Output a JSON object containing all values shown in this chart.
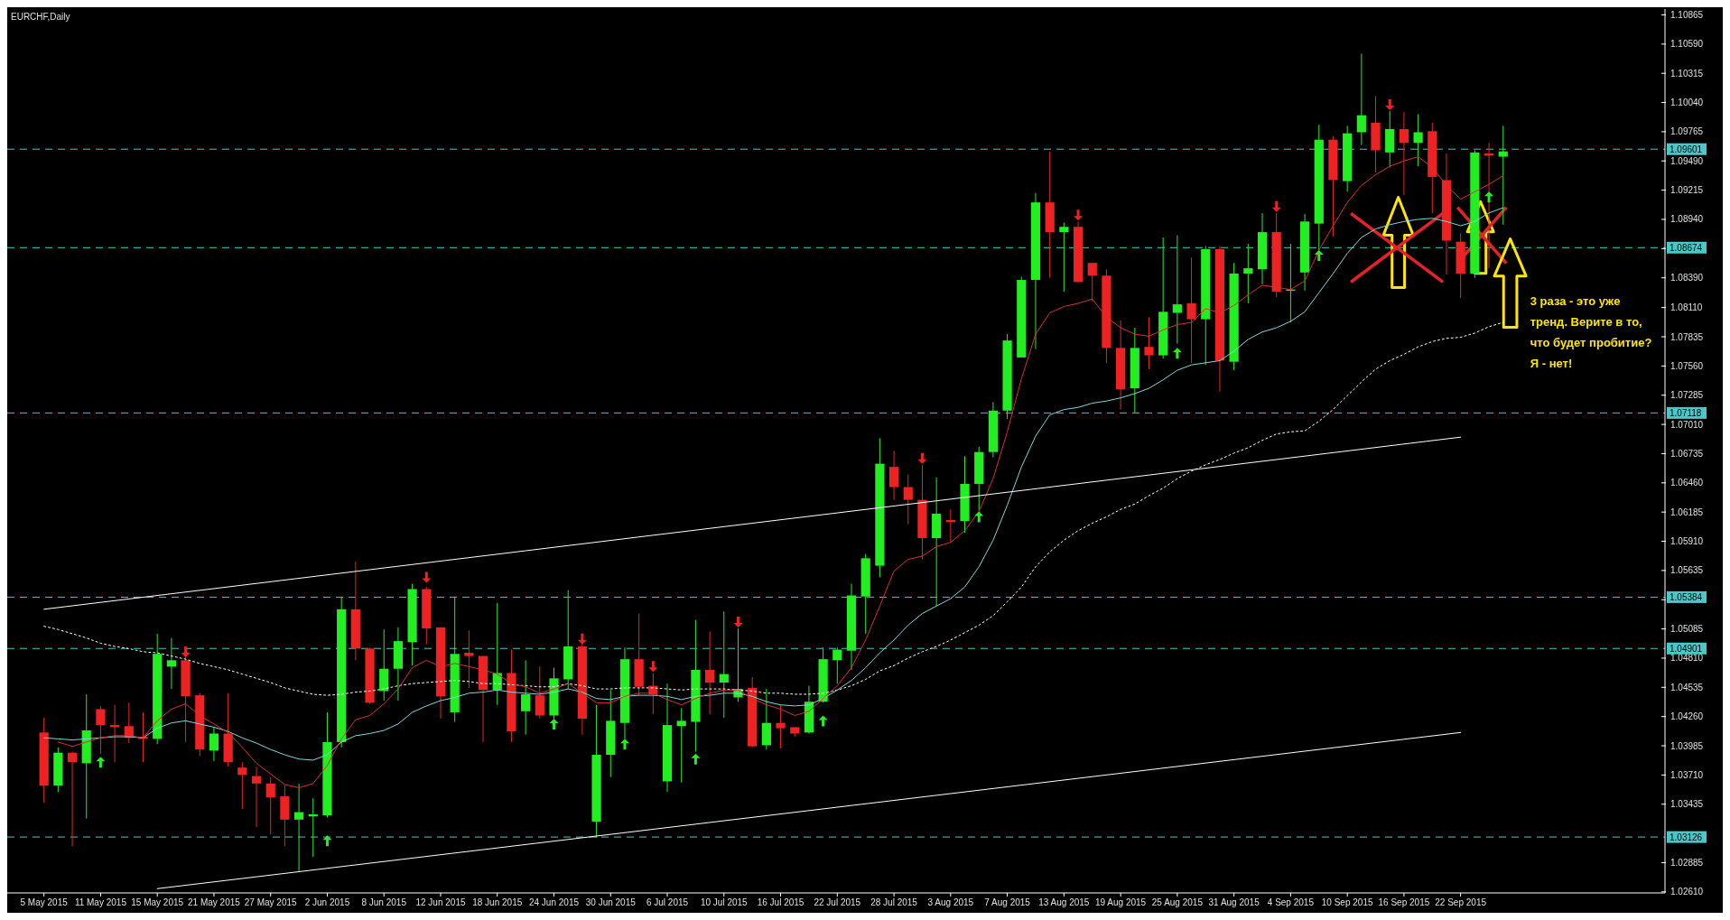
{
  "chart_data": {
    "type": "candlestick",
    "title": "EURCHF,Daily",
    "categories": [
      "5 May 2015",
      null,
      null,
      null,
      "11 May 2015",
      null,
      null,
      null,
      "15 May 2015",
      null,
      null,
      null,
      "21 May 2015",
      null,
      null,
      null,
      "27 May 2015",
      null,
      null,
      null,
      "2 Jun 2015",
      null,
      null,
      null,
      "8 Jun 2015",
      null,
      null,
      null,
      "12 Jun 2015",
      null,
      null,
      null,
      "18 Jun 2015",
      null,
      null,
      null,
      "24 Jun 2015",
      null,
      null,
      null,
      "30 Jun 2015",
      null,
      null,
      null,
      "6 Jul 2015",
      null,
      null,
      null,
      "10 Jul 2015",
      null,
      null,
      null,
      "16 Jul 2015",
      null,
      null,
      null,
      "22 Jul 2015",
      null,
      null,
      null,
      "28 Jul 2015",
      null,
      null,
      null,
      "3 Aug 2015",
      null,
      null,
      null,
      "7 Aug 2015",
      null,
      null,
      null,
      "13 Aug 2015",
      null,
      null,
      null,
      "19 Aug 2015",
      null,
      null,
      null,
      "25 Aug 2015",
      null,
      null,
      null,
      "31 Aug 2015",
      null,
      null,
      null,
      "4 Sep 2015",
      null,
      null,
      null,
      "10 Sep 2015",
      null,
      null,
      null,
      "16 Sep 2015",
      null,
      null,
      null,
      "22 Sep 2015",
      null,
      null,
      null
    ],
    "ohlc": [
      [
        1.0411,
        1.0425,
        1.0345,
        1.0361
      ],
      [
        1.0361,
        1.0397,
        1.0355,
        1.0392
      ],
      [
        1.0392,
        1.0393,
        1.0304,
        1.0383
      ],
      [
        1.0382,
        1.0447,
        1.033,
        1.0413
      ],
      [
        1.0433,
        1.0436,
        1.0391,
        1.0418
      ],
      [
        1.0418,
        1.0437,
        1.0383,
        1.0416
      ],
      [
        1.0417,
        1.0439,
        1.0401,
        1.0406
      ],
      [
        1.0407,
        1.043,
        1.0383,
        1.0405
      ],
      [
        1.0405,
        1.0504,
        1.04,
        1.0485
      ],
      [
        1.0473,
        1.05,
        1.0452,
        1.0479
      ],
      [
        1.0479,
        1.0483,
        1.0402,
        1.0445
      ],
      [
        1.0446,
        1.0448,
        1.0389,
        1.0395
      ],
      [
        1.0394,
        1.0416,
        1.0384,
        1.041
      ],
      [
        1.041,
        1.0448,
        1.0379,
        1.0383
      ],
      [
        1.0378,
        1.0383,
        1.0339,
        1.0371
      ],
      [
        1.037,
        1.0379,
        1.0322,
        1.0363
      ],
      [
        1.0363,
        1.0369,
        1.0315,
        1.035
      ],
      [
        1.0351,
        1.0361,
        1.0304,
        1.0329
      ],
      [
        1.0329,
        1.0363,
        1.028,
        1.0336
      ],
      [
        1.0332,
        1.0349,
        1.0294,
        1.0334
      ],
      [
        1.0333,
        1.043,
        1.0331,
        1.0402
      ],
      [
        1.0402,
        1.0539,
        1.0397,
        1.0527
      ],
      [
        1.0527,
        1.0572,
        1.0479,
        1.049
      ],
      [
        1.049,
        1.0491,
        1.0438,
        1.0439
      ],
      [
        1.045,
        1.0508,
        1.0441,
        1.0471
      ],
      [
        1.0471,
        1.051,
        1.0441,
        1.0497
      ],
      [
        1.0496,
        1.0551,
        1.0474,
        1.0546
      ],
      [
        1.0546,
        1.0548,
        1.0494,
        1.0509
      ],
      [
        1.051,
        1.051,
        1.0424,
        1.0445
      ],
      [
        1.043,
        1.0539,
        1.0421,
        1.0485
      ],
      [
        1.0486,
        1.0507,
        1.0453,
        1.0483
      ],
      [
        1.0483,
        1.0483,
        1.0402,
        1.0451
      ],
      [
        1.0451,
        1.0533,
        1.0437,
        1.0467
      ],
      [
        1.0467,
        1.0489,
        1.0402,
        1.0412
      ],
      [
        1.0431,
        1.0479,
        1.0409,
        1.0447
      ],
      [
        1.0446,
        1.0473,
        1.0424,
        1.0427
      ],
      [
        1.0427,
        1.0472,
        1.0424,
        1.0462
      ],
      [
        1.0461,
        1.0545,
        1.0452,
        1.0492
      ],
      [
        1.0492,
        1.0495,
        1.0409,
        1.0424
      ],
      [
        1.0327,
        1.0437,
        1.0312,
        1.039
      ],
      [
        1.039,
        1.0451,
        1.0369,
        1.0422
      ],
      [
        1.042,
        1.0491,
        1.0405,
        1.048
      ],
      [
        1.048,
        1.0523,
        1.0446,
        1.0454
      ],
      [
        1.0455,
        1.0467,
        1.0428,
        1.0447
      ],
      [
        1.0365,
        1.0457,
        1.0355,
        1.0418
      ],
      [
        1.0417,
        1.0434,
        1.0364,
        1.0422
      ],
      [
        1.0421,
        1.0517,
        1.0393,
        1.047
      ],
      [
        1.047,
        1.0506,
        1.0428,
        1.0458
      ],
      [
        1.0458,
        1.0525,
        1.0425,
        1.0466
      ],
      [
        1.0444,
        1.0509,
        1.044,
        1.0452
      ],
      [
        1.0453,
        1.0463,
        1.0397,
        1.0398
      ],
      [
        1.0399,
        1.0452,
        1.0395,
        1.042
      ],
      [
        1.042,
        1.0437,
        1.0396,
        1.0415
      ],
      [
        1.0416,
        1.0416,
        1.0407,
        1.041
      ],
      [
        1.0411,
        1.0455,
        1.041,
        1.044
      ],
      [
        1.044,
        1.0491,
        1.0439,
        1.048
      ],
      [
        1.0479,
        1.0491,
        1.0457,
        1.0489
      ],
      [
        1.0488,
        1.0551,
        1.047,
        1.054
      ],
      [
        1.0539,
        1.0579,
        1.0504,
        1.0575
      ],
      [
        1.0568,
        1.0688,
        1.0557,
        1.0664
      ],
      [
        1.0661,
        1.0676,
        1.063,
        1.0642
      ],
      [
        1.0642,
        1.0654,
        1.0607,
        1.063
      ],
      [
        1.063,
        1.0663,
        1.0574,
        1.0594
      ],
      [
        1.0594,
        1.0651,
        1.053,
        1.0617
      ],
      [
        1.0611,
        1.0621,
        1.059,
        1.0609
      ],
      [
        1.061,
        1.0671,
        1.0599,
        1.0645
      ],
      [
        1.0645,
        1.068,
        1.062,
        1.0675
      ],
      [
        1.0675,
        1.0722,
        1.067,
        1.0714
      ],
      [
        1.0714,
        1.0786,
        1.0706,
        1.078
      ],
      [
        1.0764,
        1.084,
        1.0764,
        1.0837
      ],
      [
        1.0837,
        1.0919,
        1.0772,
        1.091
      ],
      [
        1.091,
        1.0958,
        1.0839,
        1.0882
      ],
      [
        1.0882,
        1.0891,
        1.0826,
        1.0887
      ],
      [
        1.0887,
        1.0892,
        1.0835,
        1.0835
      ],
      [
        1.0853,
        1.0853,
        1.0817,
        1.0841
      ],
      [
        1.0841,
        1.0847,
        1.0759,
        1.0773
      ],
      [
        1.0773,
        1.0799,
        1.0715,
        1.0734
      ],
      [
        1.0735,
        1.0792,
        1.0712,
        1.0773
      ],
      [
        1.0774,
        1.0802,
        1.0753,
        1.0766
      ],
      [
        1.0766,
        1.0877,
        1.0763,
        1.0807
      ],
      [
        1.0806,
        1.0879,
        1.0777,
        1.0814
      ],
      [
        1.0815,
        1.0858,
        1.0759,
        1.08
      ],
      [
        1.08,
        1.0869,
        1.0757,
        1.0866
      ],
      [
        1.0866,
        1.0869,
        1.0732,
        1.0761
      ],
      [
        1.076,
        1.0853,
        1.0752,
        1.0843
      ],
      [
        1.0843,
        1.0871,
        1.0815,
        1.0848
      ],
      [
        1.0847,
        1.09,
        1.0833,
        1.0882
      ],
      [
        1.0882,
        1.09,
        1.0821,
        1.0826
      ],
      [
        1.0827,
        1.0871,
        1.0797,
        1.0828
      ],
      [
        1.0844,
        1.0899,
        1.0827,
        1.0892
      ],
      [
        1.089,
        1.0983,
        1.0865,
        1.0969
      ],
      [
        1.0969,
        1.0972,
        1.0878,
        1.0931
      ],
      [
        1.093,
        1.0982,
        1.092,
        1.0975
      ],
      [
        1.0976,
        1.105,
        1.0964,
        1.0992
      ],
      [
        1.0985,
        1.101,
        1.0938,
        1.0959
      ],
      [
        1.0957,
        1.0996,
        1.0943,
        1.0979
      ],
      [
        1.0979,
        1.0995,
        1.0917,
        1.0966
      ],
      [
        1.0966,
        1.0993,
        1.0944,
        1.0976
      ],
      [
        1.0977,
        1.0985,
        1.09,
        1.0934
      ],
      [
        1.0931,
        1.0956,
        1.0842,
        1.0874
      ],
      [
        1.0873,
        1.0881,
        1.082,
        1.0843
      ],
      [
        1.0843,
        1.0959,
        1.0839,
        1.0957
      ],
      [
        1.0956,
        1.0966,
        1.0848,
        1.0954
      ],
      [
        1.0953,
        1.0982,
        1.0889,
        1.0958
      ]
    ],
    "colors": [
      "#ee2222",
      "#22ee22",
      "#ee2222",
      "#22ee22",
      "#ee2222",
      "#ee2222",
      "#ee2222",
      "#ee2222",
      "#22ee22",
      "#22ee22",
      "#ee2222",
      "#ee2222",
      "#22ee22",
      "#ee2222",
      "#ee2222",
      "#ee2222",
      "#ee2222",
      "#ee2222",
      "#22ee22",
      "#22ee22",
      "#22ee22",
      "#22ee22",
      "#ee2222",
      "#ee2222",
      "#22ee22",
      "#22ee22",
      "#22ee22",
      "#ee2222",
      "#ee2222",
      "#22ee22",
      "#ee2222",
      "#ee2222",
      "#22ee22",
      "#ee2222",
      "#22ee22",
      "#ee2222",
      "#22ee22",
      "#22ee22",
      "#ee2222",
      "#22ee22",
      "#22ee22",
      "#22ee22",
      "#ee2222",
      "#ee2222",
      "#22ee22",
      "#22ee22",
      "#22ee22",
      "#ee2222",
      "#22ee22",
      "#22ee22",
      "#ee2222",
      "#22ee22",
      "#ee2222",
      "#ee2222",
      "#22ee22",
      "#22ee22",
      "#22ee22",
      "#22ee22",
      "#22ee22",
      "#22ee22",
      "#ee2222",
      "#ee2222",
      "#ee2222",
      "#22ee22",
      "#ee2222",
      "#22ee22",
      "#22ee22",
      "#22ee22",
      "#22ee22",
      "#22ee22",
      "#22ee22",
      "#ee2222",
      "#22ee22",
      "#ee2222",
      "#ee2222",
      "#ee2222",
      "#ee2222",
      "#22ee22",
      "#ee2222",
      "#22ee22",
      "#22ee22",
      "#ee2222",
      "#22ee22",
      "#ee2222",
      "#22ee22",
      "#22ee22",
      "#22ee22",
      "#ee2222",
      "#22ee22",
      "#22ee22",
      "#22ee22",
      "#ee2222",
      "#22ee22",
      "#22ee22",
      "#ee2222",
      "#22ee22",
      "#ee2222",
      "#22ee22",
      "#ee2222",
      "#ee2222",
      "#ee2222",
      "#22ee22",
      "#ee2222",
      "#22ee22"
    ],
    "series": [
      {
        "type": "line",
        "color": "#ffffff",
        "line_style": "dotted",
        "values": [
          1.0511,
          1.0508,
          1.0504,
          1.05,
          1.0495,
          1.0492,
          1.049,
          1.0487,
          1.0486,
          1.0483,
          1.048,
          1.0476,
          1.0473,
          1.047,
          1.0466,
          1.0462,
          1.0458,
          1.0453,
          1.045,
          1.0447,
          1.0446,
          1.0447,
          1.0449,
          1.045,
          1.0452,
          1.0455,
          1.0457,
          1.0458,
          1.0459,
          1.046,
          1.0459,
          1.0457,
          1.0457,
          1.0456,
          1.0455,
          1.0454,
          1.0454,
          1.0457,
          1.0455,
          1.0452,
          1.0452,
          1.0453,
          1.0453,
          1.0453,
          1.0452,
          1.0451,
          1.0452,
          1.0452,
          1.0452,
          1.0451,
          1.045,
          1.0448,
          1.0448,
          1.0447,
          1.0447,
          1.0448,
          1.0451,
          1.0455,
          1.0461,
          1.0469,
          1.0474,
          1.0481,
          1.0487,
          1.0492,
          1.0498,
          1.0505,
          1.0512,
          1.0521,
          1.0534,
          1.0548,
          1.0567,
          1.0581,
          1.0592,
          1.0601,
          1.0608,
          1.0614,
          1.0621,
          1.0626,
          1.0634,
          1.0641,
          1.065,
          1.0657,
          1.0663,
          1.0668,
          1.0674,
          1.0679,
          1.0686,
          1.0692,
          1.0694,
          1.0695,
          1.0704,
          1.0715,
          1.0728,
          1.0741,
          1.0753,
          1.0761,
          1.0767,
          1.0774,
          1.0779,
          1.0782,
          1.0783,
          1.0787,
          1.0793,
          1.0797
        ]
      },
      {
        "type": "line",
        "color": "#7fd8d8",
        "line_style": "solid",
        "values": [
          1.0406,
          1.0405,
          1.0404,
          1.0405,
          1.0406,
          1.0407,
          1.0407,
          1.0406,
          1.0415,
          1.042,
          1.0422,
          1.0419,
          1.0416,
          1.0412,
          1.0406,
          1.0401,
          1.0395,
          1.039,
          1.0386,
          1.0385,
          1.039,
          1.0402,
          1.0408,
          1.041,
          1.0413,
          1.0419,
          1.043,
          1.0436,
          1.0441,
          1.0444,
          1.0448,
          1.0449,
          1.0451,
          1.0449,
          1.0448,
          1.0447,
          1.0449,
          1.0452,
          1.0449,
          1.0443,
          1.0442,
          1.0445,
          1.0446,
          1.0446,
          1.0445,
          1.0442,
          1.0445,
          1.0446,
          1.0448,
          1.0448,
          1.0445,
          1.044,
          1.0437,
          1.0436,
          1.0437,
          1.0443,
          1.0451,
          1.046,
          1.0472,
          1.0486,
          1.0498,
          1.0512,
          1.0523,
          1.053,
          1.0537,
          1.0548,
          1.0567,
          1.0592,
          1.0625,
          1.0661,
          1.069,
          1.071,
          1.0715,
          1.0717,
          1.0721,
          1.0723,
          1.0726,
          1.073,
          1.0735,
          1.0743,
          1.0752,
          1.0757,
          1.0759,
          1.0761,
          1.077,
          1.0781,
          1.0788,
          1.0792,
          1.0798,
          1.0807,
          1.0825,
          1.0843,
          1.0862,
          1.0877,
          1.0885,
          1.0889,
          1.0892,
          1.0894,
          1.0895,
          1.0892,
          1.0888,
          1.0892,
          1.09,
          1.0905
        ]
      },
      {
        "type": "line",
        "color": "#d83030",
        "line_style": "solid",
        "values": [
          null,
          1.0402,
          1.0398,
          1.0402,
          1.0406,
          1.0408,
          1.0408,
          1.0406,
          1.0422,
          1.0433,
          1.0438,
          1.0427,
          1.0419,
          1.0411,
          1.0397,
          1.0382,
          1.0372,
          1.0362,
          1.0359,
          1.0363,
          1.038,
          1.0405,
          1.0423,
          1.0427,
          1.0438,
          1.0452,
          1.0472,
          1.0479,
          1.0473,
          1.0476,
          1.0473,
          1.047,
          1.0466,
          1.0457,
          1.0454,
          1.0448,
          1.0452,
          1.0457,
          1.0448,
          1.0439,
          1.0439,
          1.0445,
          1.0448,
          1.0448,
          1.0442,
          1.0437,
          1.0443,
          1.0448,
          1.0451,
          1.0451,
          1.0443,
          1.0437,
          1.0433,
          1.0427,
          1.0431,
          1.0443,
          1.0455,
          1.0472,
          1.0498,
          1.053,
          1.0563,
          1.0574,
          1.0577,
          1.0586,
          1.059,
          1.0601,
          1.0619,
          1.065,
          1.0694,
          1.0744,
          1.0786,
          1.0806,
          1.0812,
          1.0815,
          1.0819,
          1.0802,
          1.0792,
          1.0786,
          1.0784,
          1.079,
          1.0795,
          1.0797,
          1.081,
          1.0806,
          1.0813,
          1.0823,
          1.0832,
          1.083,
          1.0828,
          1.0836,
          1.0865,
          1.0888,
          1.091,
          1.0926,
          1.0936,
          1.0944,
          1.0949,
          1.0953,
          1.0943,
          1.0926,
          1.0913,
          1.092,
          1.0927,
          1.0935
        ]
      },
      {
        "type": "line",
        "color": "#ffffff",
        "line_style": "solid",
        "x": [
          "5 May 2015",
          "22 Sep 2015"
        ],
        "values": [
          1.0527,
          1.0689
        ]
      },
      {
        "type": "line",
        "color": "#ffffff",
        "line_style": "solid",
        "x": [
          "15 May 2015",
          "22 Sep 2015"
        ],
        "values": [
          1.0264,
          1.0411
        ]
      },
      {
        "type": "scatter",
        "color": "#ee2222",
        "marker": "triangle",
        "values": [
          null,
          null,
          null,
          null,
          null,
          null,
          null,
          null,
          null,
          null,
          1.0487,
          null,
          null,
          null,
          null,
          null,
          null,
          null,
          null,
          null,
          null,
          null,
          null,
          null,
          null,
          null,
          null,
          1.0557,
          null,
          null,
          null,
          null,
          null,
          null,
          null,
          null,
          null,
          null,
          1.0499,
          null,
          null,
          null,
          null,
          1.0473,
          null,
          null,
          null,
          null,
          null,
          1.0515,
          null,
          null,
          null,
          null,
          null,
          null,
          null,
          null,
          null,
          null,
          null,
          null,
          1.0669,
          null,
          null,
          null,
          null,
          null,
          null,
          null,
          null,
          null,
          null,
          1.0898,
          null,
          null,
          null,
          null,
          null,
          null,
          null,
          null,
          null,
          null,
          null,
          null,
          null,
          1.0906,
          null,
          null,
          null,
          null,
          null,
          null,
          null,
          1.1002,
          null,
          null,
          null,
          null,
          null,
          null,
          null,
          null
        ]
      },
      {
        "type": "scatter",
        "color": "#22ee22",
        "marker": "triangle",
        "values": [
          null,
          null,
          null,
          null,
          1.0383,
          null,
          null,
          null,
          null,
          null,
          null,
          null,
          null,
          null,
          null,
          null,
          null,
          null,
          null,
          null,
          1.0309,
          null,
          null,
          null,
          null,
          null,
          null,
          null,
          null,
          null,
          null,
          null,
          null,
          null,
          null,
          null,
          1.0419,
          null,
          null,
          null,
          null,
          1.04,
          null,
          null,
          null,
          null,
          1.0386,
          null,
          null,
          null,
          null,
          null,
          null,
          null,
          null,
          1.0422,
          null,
          null,
          null,
          null,
          null,
          null,
          null,
          null,
          null,
          null,
          1.0614,
          null,
          null,
          null,
          null,
          null,
          null,
          null,
          null,
          null,
          null,
          null,
          null,
          null,
          1.0768,
          null,
          null,
          null,
          null,
          null,
          null,
          null,
          null,
          null,
          1.086,
          null,
          null,
          null,
          null,
          null,
          null,
          null,
          null,
          null,
          null,
          null,
          1.0915,
          null
        ]
      }
    ],
    "ylim": [
      1.026,
      1.1092
    ],
    "yticks": [
      {
        "value": 1.0261,
        "label": "1.02610"
      },
      1.02885,
      1.03435,
      {
        "value": 1.0371,
        "label": "1.03710"
      },
      1.03985,
      {
        "value": 1.0426,
        "label": "1.04260"
      },
      1.04535,
      {
        "value": 1.0481,
        "label": "1.04810"
      },
      1.05085,
      {
        "value": 1.0536,
        "label": null
      },
      1.05635,
      {
        "value": 1.0591,
        "label": "1.05910"
      },
      1.06185,
      {
        "value": 1.0646,
        "label": "1.06460"
      },
      1.06735,
      {
        "value": 1.0701,
        "label": "1.07010"
      },
      1.07285,
      {
        "value": 1.0756,
        "label": "1.07560"
      },
      1.07835,
      {
        "value": 1.0811,
        "label": "1.08110"
      },
      {
        "value": 1.0839,
        "label": "1.08390"
      },
      {
        "value": 1.08665,
        "label": null
      },
      {
        "value": 1.0894,
        "label": "1.08940"
      },
      1.09215,
      {
        "value": 1.0949,
        "label": "1.09490"
      },
      1.09765,
      {
        "value": 1.1004,
        "label": "1.10040"
      },
      1.10315,
      {
        "value": 1.1059,
        "label": "1.10590"
      },
      1.10865
    ],
    "ref_lines": [
      {
        "axis": "y",
        "value": 1.09601,
        "label": "1.09601",
        "color": "#48c8c8",
        "line_style": "dashed"
      },
      {
        "axis": "y",
        "value": 1.08674,
        "label": "1.08674",
        "color": "#48c8c8",
        "line_style": "dashed"
      },
      {
        "axis": "y",
        "value": 1.07118,
        "label": "1.07118",
        "color": "#48c8c8",
        "line_style": "dashed"
      },
      {
        "axis": "y",
        "value": 1.05384,
        "label": "1.05384",
        "color": "#48c8c8",
        "line_style": "dashed"
      },
      {
        "axis": "y",
        "value": 1.04901,
        "label": "1.04901",
        "color": "#48c8c8",
        "line_style": "dashed"
      },
      {
        "axis": "y",
        "value": 1.03126,
        "label": "1.03126",
        "color": "#48c8c8",
        "line_style": "dashed"
      }
    ],
    "annotations": [
      "3 раза - это уже тренд. Верите в то, что будет пробитие? Я - нет!"
    ]
  }
}
